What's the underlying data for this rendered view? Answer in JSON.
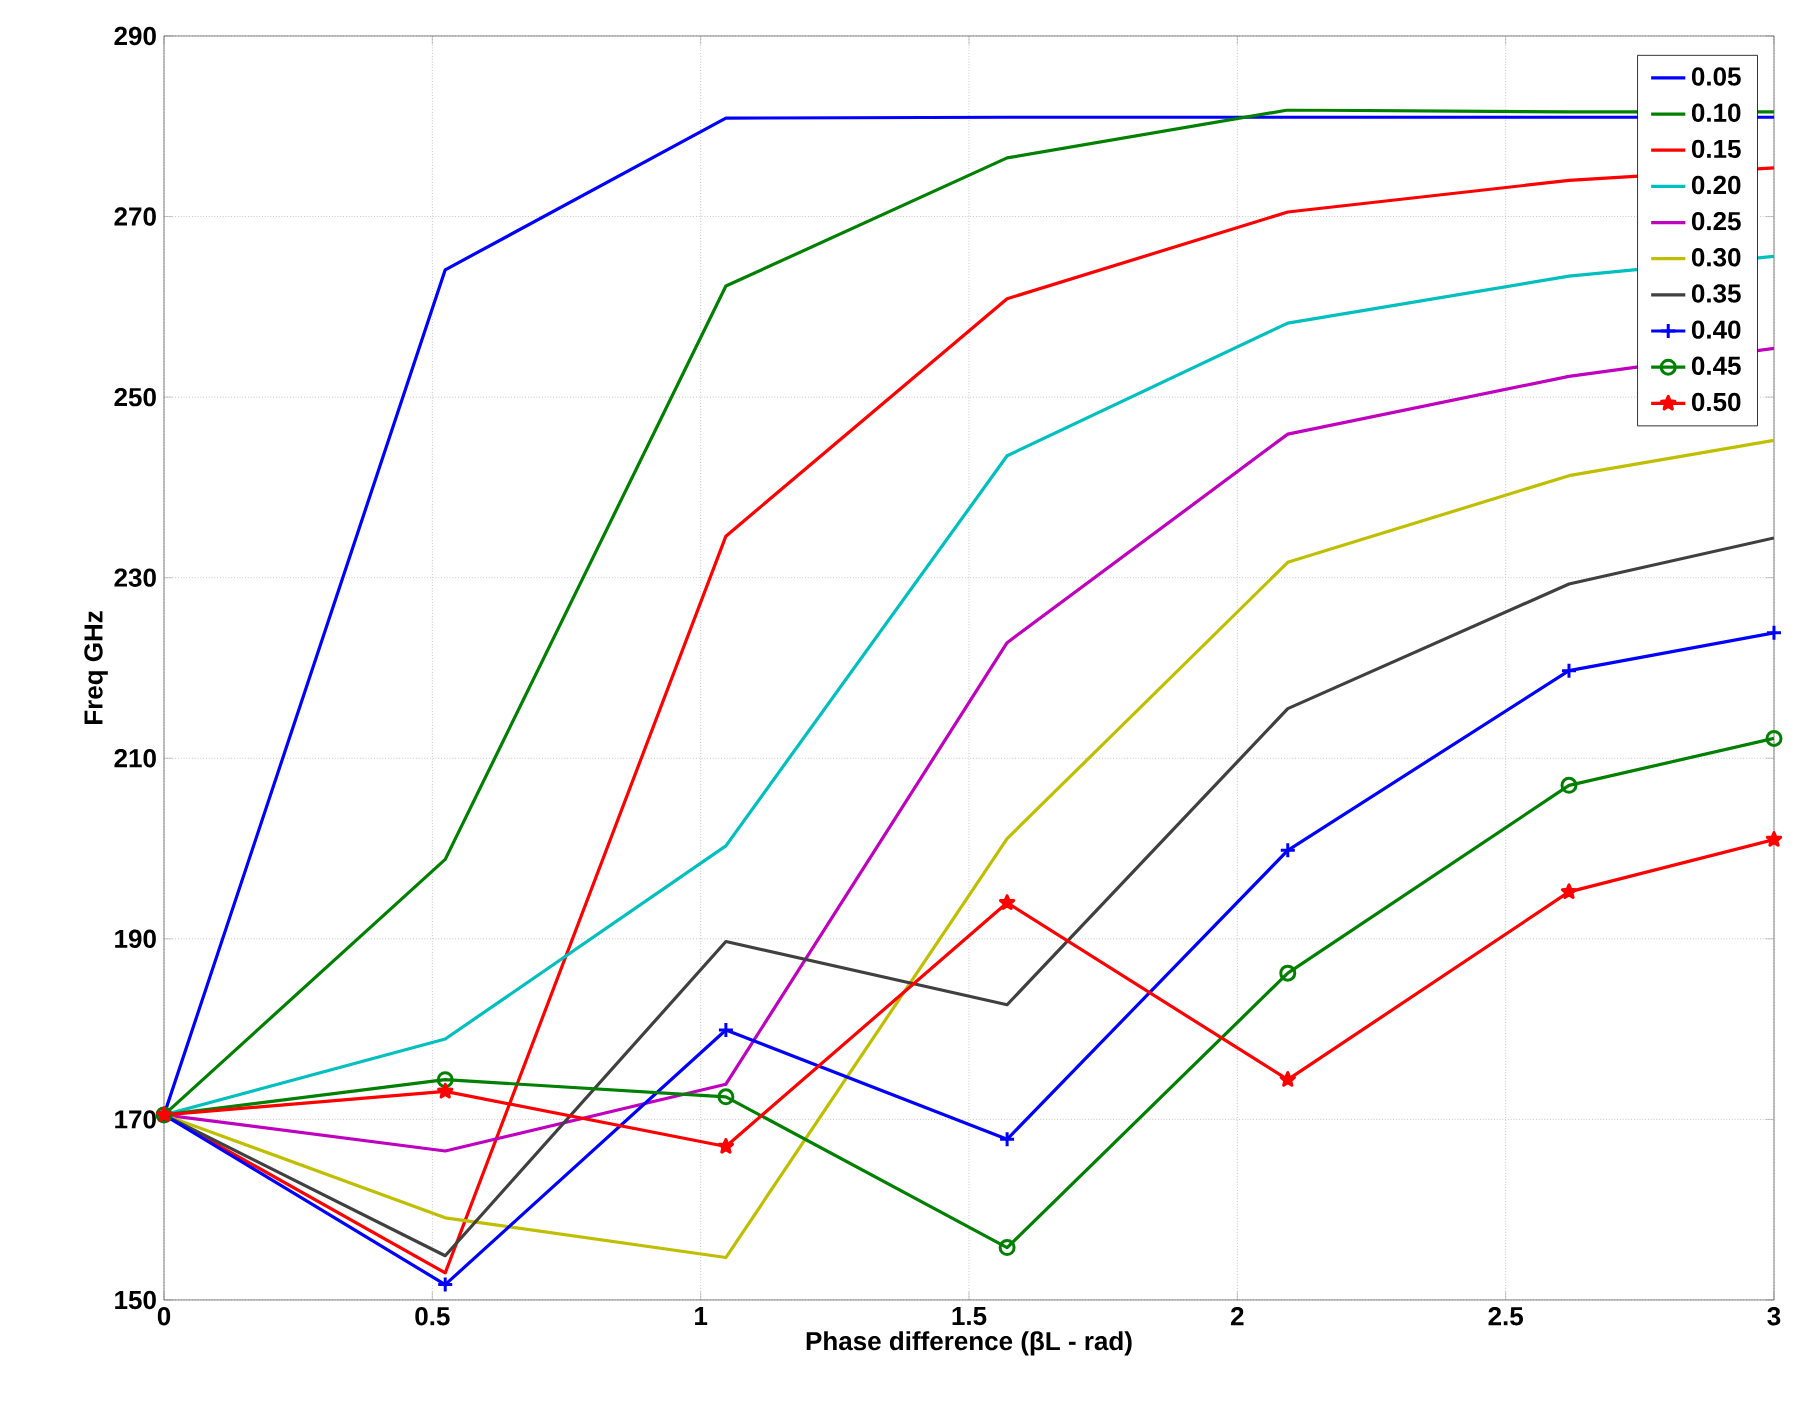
{
  "chart_data": {
    "type": "line",
    "xlabel": "Phase difference (βL - rad)",
    "ylabel": "Freq GHz",
    "x": [
      0,
      0.524,
      1.047,
      1.571,
      2.094,
      2.618,
      3
    ],
    "xlim": [
      0,
      3
    ],
    "xticks": [
      0,
      0.5,
      1,
      1.5,
      2,
      2.5,
      3
    ],
    "ylim": [
      150,
      290
    ],
    "yticks": [
      150,
      170,
      190,
      210,
      230,
      250,
      270,
      290
    ],
    "grid": true,
    "legend": "top right",
    "marker": "none",
    "line_style": "solid",
    "series": [
      {
        "name": "0.05",
        "color": "#0000ff",
        "values": [
          170.5,
          264.1,
          280.9,
          281,
          281,
          281,
          281
        ]
      },
      {
        "name": "0.10",
        "color": "#008000",
        "values": [
          170.5,
          198.8,
          262.3,
          276.5,
          281.8,
          281.6,
          281.6
        ]
      },
      {
        "name": "0.15",
        "color": "#ff0000",
        "values": [
          170.5,
          153,
          234.6,
          260.9,
          270.5,
          274,
          275.4
        ]
      },
      {
        "name": "0.20",
        "color": "#00bfbf",
        "values": [
          170.5,
          178.9,
          200.3,
          243.5,
          258.2,
          263.4,
          265.6
        ]
      },
      {
        "name": "0.25",
        "color": "#bf00bf",
        "values": [
          170.5,
          166.5,
          173.9,
          222.8,
          245.9,
          252.3,
          255.4
        ]
      },
      {
        "name": "0.30",
        "color": "#bfbf00",
        "values": [
          170.5,
          159.1,
          154.7,
          201.1,
          231.7,
          241.3,
          245.2
        ]
      },
      {
        "name": "0.35",
        "color": "#404040",
        "values": [
          170.5,
          154.9,
          189.7,
          182.7,
          215.5,
          229.3,
          234.4
        ]
      },
      {
        "name": "0.40",
        "color": "#0000ff",
        "marker": "cross",
        "values": [
          170.5,
          151.7,
          179.9,
          167.8,
          199.8,
          219.7,
          223.9
        ]
      },
      {
        "name": "0.45",
        "color": "#008000",
        "marker": "circle",
        "values": [
          170.5,
          174.4,
          172.5,
          155.8,
          186.2,
          207,
          212.2
        ]
      },
      {
        "name": "0.50",
        "color": "#ff0000",
        "marker": "star",
        "values": [
          170.5,
          173.1,
          167,
          194,
          174.4,
          195.2,
          201
        ]
      }
    ]
  }
}
